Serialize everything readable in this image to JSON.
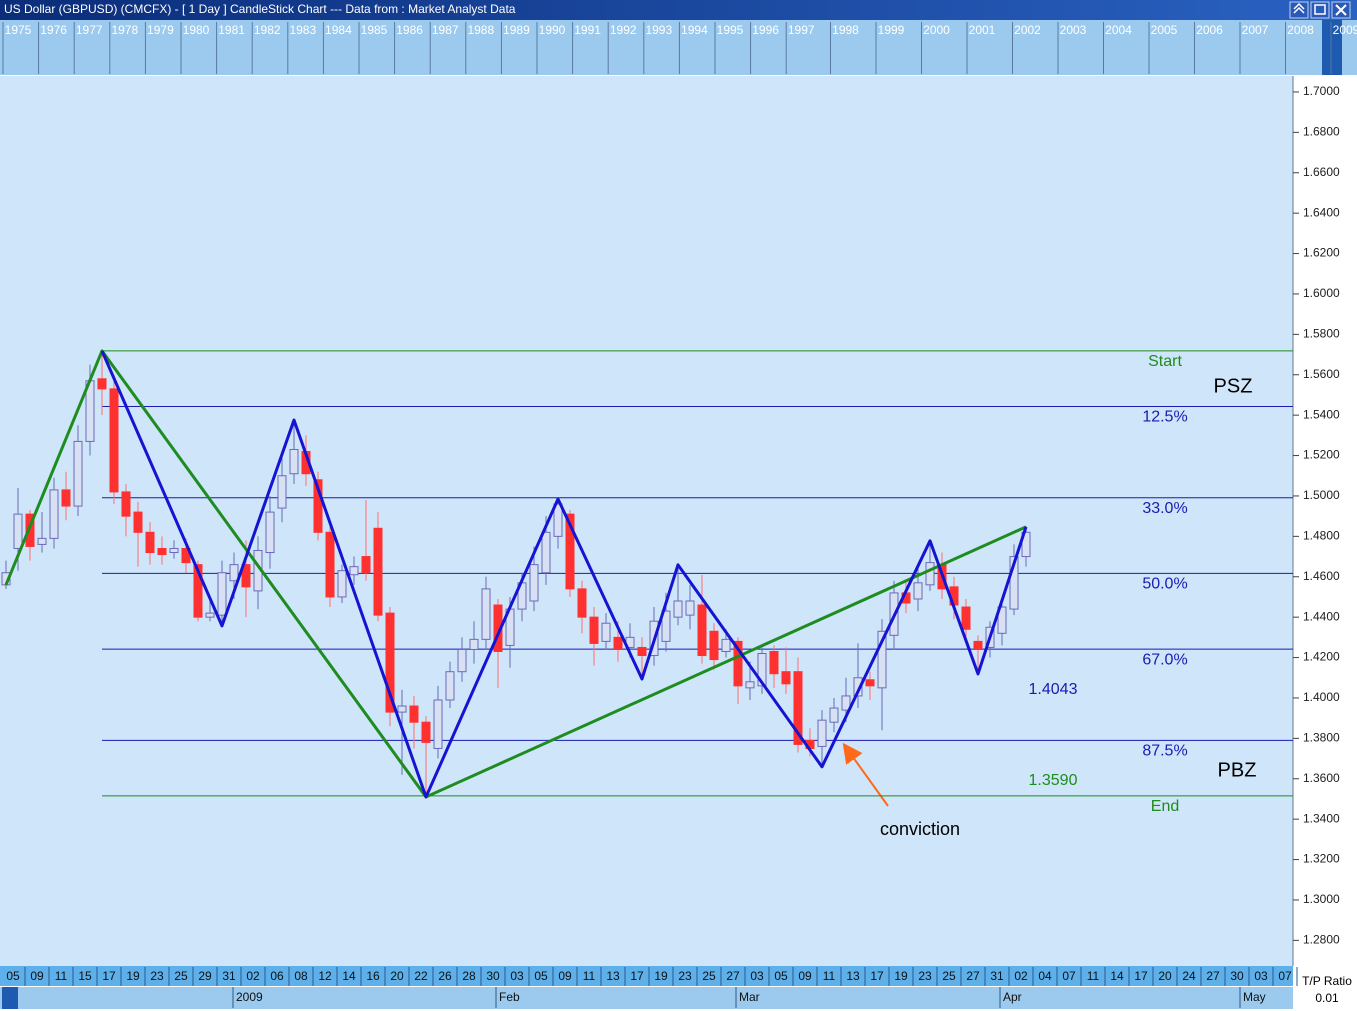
{
  "chart_data": {
    "type": "candlestick",
    "title": "US Dollar (GBPUSD) (CMCFX) -  [ 1 Day ] CandleStick Chart --- Data from : Market Analyst Data",
    "overview_years": [
      1975,
      1976,
      1977,
      1978,
      1979,
      1980,
      1981,
      1982,
      1983,
      1984,
      1985,
      1986,
      1987,
      1988,
      1989,
      1990,
      1991,
      1992,
      1993,
      1994,
      1995,
      1996,
      1997,
      1998,
      1999,
      2000,
      2001,
      2002,
      2003,
      2004,
      2005,
      2006,
      2007,
      2008,
      2009
    ],
    "day_labels": [
      "05",
      "09",
      "11",
      "15",
      "17",
      "19",
      "23",
      "25",
      "29",
      "31",
      "02",
      "06",
      "08",
      "12",
      "14",
      "16",
      "20",
      "22",
      "26",
      "28",
      "30",
      "03",
      "05",
      "09",
      "11",
      "13",
      "17",
      "19",
      "23",
      "25",
      "27",
      "03",
      "05",
      "09",
      "11",
      "13",
      "17",
      "19",
      "23",
      "25",
      "27",
      "31",
      "02",
      "04",
      "07",
      "11",
      "14",
      "17",
      "20",
      "24",
      "27",
      "30",
      "03",
      "07"
    ],
    "month_labels": [
      "2009",
      "Feb",
      "Mar",
      "Apr",
      "May"
    ],
    "ylim": [
      1.2678,
      1.7074
    ],
    "yticks": [
      {
        "value": 1.7,
        "label": "1.7000"
      },
      {
        "value": 1.68,
        "label": "1.6800"
      },
      {
        "value": 1.66,
        "label": "1.6600"
      },
      {
        "value": 1.64,
        "label": "1.6400"
      },
      {
        "value": 1.62,
        "label": "1.6200"
      },
      {
        "value": 1.6,
        "label": "1.6000"
      },
      {
        "value": 1.58,
        "label": "1.5800"
      },
      {
        "value": 1.56,
        "label": "1.5600"
      },
      {
        "value": 1.54,
        "label": "1.5400"
      },
      {
        "value": 1.52,
        "label": "1.5200"
      },
      {
        "value": 1.5,
        "label": "1.5000"
      },
      {
        "value": 1.48,
        "label": "1.4800"
      },
      {
        "value": 1.46,
        "label": "1.4600"
      },
      {
        "value": 1.44,
        "label": "1.4400"
      },
      {
        "value": 1.42,
        "label": "1.4200"
      },
      {
        "value": 1.4,
        "label": "1.4000"
      },
      {
        "value": 1.38,
        "label": "1.3800"
      },
      {
        "value": 1.36,
        "label": "1.3600"
      },
      {
        "value": 1.34,
        "label": "1.3400"
      },
      {
        "value": 1.32,
        "label": "1.3200"
      },
      {
        "value": 1.3,
        "label": "1.3000"
      },
      {
        "value": 1.28,
        "label": "1.2800"
      }
    ],
    "candles": {
      "up_color": "#d8e0f4",
      "down_color": "#ff3030",
      "edge_color": "#6a6ab8",
      "open": [
        1.456,
        1.474,
        1.491,
        1.476,
        1.479,
        1.503,
        1.495,
        1.527,
        1.558,
        1.553,
        1.502,
        1.492,
        1.482,
        1.474,
        1.472,
        1.474,
        1.466,
        1.44,
        1.441,
        1.458,
        1.466,
        1.453,
        1.472,
        1.494,
        1.511,
        1.522,
        1.508,
        1.482,
        1.45,
        1.461,
        1.47,
        1.484,
        1.442,
        1.393,
        1.396,
        1.388,
        1.375,
        1.399,
        1.413,
        1.424,
        1.429,
        1.446,
        1.426,
        1.444,
        1.448,
        1.462,
        1.48,
        1.491,
        1.454,
        1.44,
        1.428,
        1.43,
        1.425,
        1.425,
        1.421,
        1.428,
        1.44,
        1.441,
        1.446,
        1.433,
        1.423,
        1.428,
        1.405,
        1.406,
        1.423,
        1.413,
        1.413,
        1.379,
        1.376,
        1.388,
        1.394,
        1.401,
        1.409,
        1.405,
        1.431,
        1.452,
        1.449,
        1.456,
        1.466,
        1.455,
        1.445,
        1.428,
        1.425,
        1.432,
        1.444,
        1.47
      ],
      "high": [
        1.468,
        1.504,
        1.493,
        1.492,
        1.509,
        1.512,
        1.535,
        1.565,
        1.572,
        1.56,
        1.506,
        1.497,
        1.487,
        1.48,
        1.478,
        1.479,
        1.468,
        1.448,
        1.468,
        1.472,
        1.478,
        1.48,
        1.5,
        1.52,
        1.537,
        1.53,
        1.512,
        1.487,
        1.466,
        1.47,
        1.498,
        1.492,
        1.445,
        1.404,
        1.401,
        1.391,
        1.406,
        1.418,
        1.43,
        1.438,
        1.46,
        1.449,
        1.45,
        1.462,
        1.475,
        1.49,
        1.499,
        1.493,
        1.458,
        1.445,
        1.442,
        1.438,
        1.437,
        1.43,
        1.445,
        1.452,
        1.466,
        1.456,
        1.461,
        1.437,
        1.434,
        1.43,
        1.418,
        1.425,
        1.426,
        1.425,
        1.42,
        1.385,
        1.394,
        1.4,
        1.41,
        1.427,
        1.413,
        1.439,
        1.458,
        1.458,
        1.466,
        1.478,
        1.472,
        1.46,
        1.449,
        1.431,
        1.438,
        1.45,
        1.476,
        1.485
      ],
      "low": [
        1.454,
        1.463,
        1.468,
        1.472,
        1.474,
        1.488,
        1.49,
        1.52,
        1.54,
        1.496,
        1.48,
        1.465,
        1.466,
        1.466,
        1.469,
        1.462,
        1.438,
        1.438,
        1.436,
        1.449,
        1.44,
        1.444,
        1.464,
        1.487,
        1.506,
        1.505,
        1.478,
        1.445,
        1.447,
        1.456,
        1.458,
        1.438,
        1.386,
        1.362,
        1.375,
        1.351,
        1.37,
        1.395,
        1.408,
        1.417,
        1.424,
        1.405,
        1.415,
        1.438,
        1.443,
        1.456,
        1.474,
        1.45,
        1.432,
        1.416,
        1.424,
        1.418,
        1.42,
        1.41,
        1.416,
        1.423,
        1.436,
        1.434,
        1.417,
        1.414,
        1.42,
        1.397,
        1.399,
        1.402,
        1.405,
        1.402,
        1.373,
        1.371,
        1.366,
        1.383,
        1.388,
        1.395,
        1.399,
        1.384,
        1.424,
        1.442,
        1.443,
        1.453,
        1.449,
        1.439,
        1.43,
        1.412,
        1.42,
        1.426,
        1.441,
        1.465
      ],
      "close": [
        1.462,
        1.491,
        1.475,
        1.479,
        1.503,
        1.495,
        1.527,
        1.557,
        1.553,
        1.502,
        1.49,
        1.482,
        1.472,
        1.471,
        1.474,
        1.467,
        1.44,
        1.442,
        1.462,
        1.466,
        1.455,
        1.473,
        1.492,
        1.51,
        1.523,
        1.511,
        1.482,
        1.45,
        1.463,
        1.465,
        1.462,
        1.441,
        1.393,
        1.396,
        1.388,
        1.378,
        1.399,
        1.413,
        1.424,
        1.429,
        1.454,
        1.423,
        1.444,
        1.457,
        1.466,
        1.482,
        1.496,
        1.454,
        1.44,
        1.427,
        1.437,
        1.424,
        1.43,
        1.421,
        1.438,
        1.443,
        1.448,
        1.448,
        1.421,
        1.419,
        1.429,
        1.406,
        1.408,
        1.422,
        1.412,
        1.407,
        1.377,
        1.375,
        1.389,
        1.395,
        1.401,
        1.41,
        1.406,
        1.433,
        1.452,
        1.447,
        1.457,
        1.467,
        1.454,
        1.446,
        1.434,
        1.424,
        1.435,
        1.445,
        1.47,
        1.482
      ]
    },
    "zigzag": {
      "color": "#1414d2",
      "x": [
        8,
        18,
        24,
        35,
        46,
        53,
        56,
        68,
        77,
        81,
        85
      ],
      "values": [
        1.5718,
        1.4357,
        1.5376,
        1.351,
        1.4985,
        1.4094,
        1.4659,
        1.3659,
        1.4778,
        1.4119,
        1.4847
      ]
    },
    "trend": {
      "color": "#1e8c1e",
      "x": [
        0,
        8,
        35,
        85
      ],
      "values": [
        1.456,
        1.5718,
        1.351,
        1.4847
      ]
    },
    "levels": [
      {
        "label": "Start",
        "value": 1.5718,
        "color": "#1e8c1e"
      },
      {
        "label": "12.5%",
        "value": 1.5443,
        "color": "#1a1ab4"
      },
      {
        "label": "33.0%",
        "value": 1.4991,
        "color": "#1a1ab4"
      },
      {
        "label": "50.0%",
        "value": 1.4617,
        "color": "#1a1ab4"
      },
      {
        "label": "67.0%",
        "value": 1.4242,
        "color": "#1a1ab4"
      },
      {
        "label": "87.5%",
        "value": 1.379,
        "color": "#1a1ab4"
      },
      {
        "label": "End",
        "value": 1.3515,
        "color": "#1e8c1e"
      }
    ],
    "annotations": [
      {
        "text": "PSZ",
        "color": "#000000"
      },
      {
        "text": "PBZ",
        "color": "#000000"
      },
      {
        "text": "conviction",
        "color": "#000000"
      },
      {
        "text": "1.4043",
        "color": "#1a1ab4"
      },
      {
        "text": "1.3590",
        "color": "#1e8c1e"
      }
    ],
    "ratio_label": "T/P Ratio",
    "ratio_value": 0.01
  }
}
